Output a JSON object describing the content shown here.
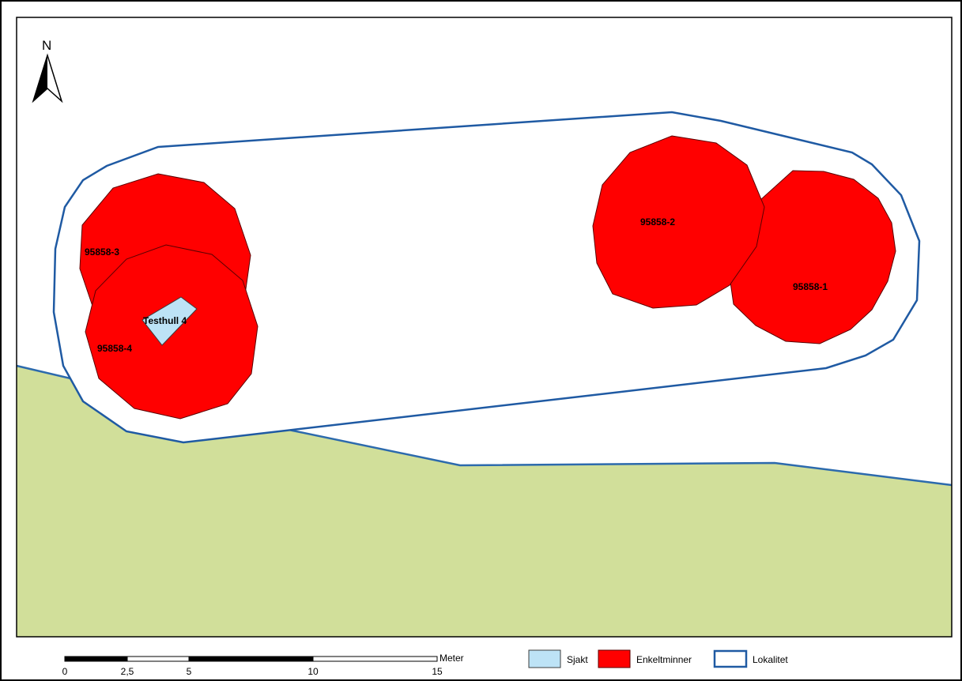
{
  "map": {
    "north_label": "N",
    "colors": {
      "background": "#ffffff",
      "terrain": "#d1df9a",
      "terrain_edge": "#2c6aad",
      "enkeltminne_fill": "#ff0000",
      "enkeltminne_stroke": "#5a0000",
      "sjakt_fill": "#bde3f6",
      "sjakt_stroke": "#3c3c3c",
      "lokalitet_stroke": "#1f5aa3",
      "frame": "#000000"
    },
    "features": {
      "enkeltminne_1": "95858-1",
      "enkeltminne_2": "95858-2",
      "enkeltminne_3": "95858-3",
      "enkeltminne_4": "95858-4",
      "testhull": "Testhull 4"
    }
  },
  "scalebar": {
    "ticks": [
      "0",
      "2,5",
      "5",
      "10",
      "15"
    ],
    "unit": "Meter"
  },
  "legend": {
    "items": [
      {
        "label": "Sjakt",
        "icon": "sjakt-swatch"
      },
      {
        "label": "Enkeltminner",
        "icon": "enkeltminner-swatch"
      },
      {
        "label": "Lokalitet",
        "icon": "lokalitet-swatch"
      }
    ]
  }
}
